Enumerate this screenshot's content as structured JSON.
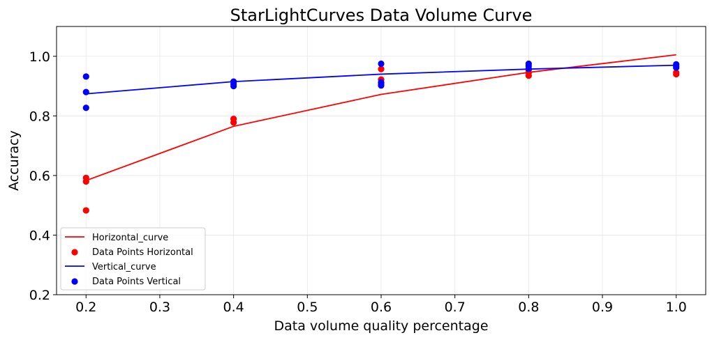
{
  "chart_data": {
    "type": "line",
    "title": "StarLightCurves Data Volume Curve",
    "xlabel": "Data volume quality percentage",
    "ylabel": "Accuracy",
    "xlim": [
      0.16,
      1.04
    ],
    "ylim": [
      0.2,
      1.1
    ],
    "xticks": [
      0.2,
      0.3,
      0.4,
      0.5,
      0.6,
      0.7,
      0.8,
      0.9,
      1.0
    ],
    "xtick_labels": [
      "0.2",
      "0.3",
      "0.4",
      "0.5",
      "0.6",
      "0.7",
      "0.8",
      "0.9",
      "1.0"
    ],
    "yticks": [
      0.2,
      0.4,
      0.6,
      0.8,
      1.0
    ],
    "ytick_labels": [
      "0.2",
      "0.4",
      "0.6",
      "0.8",
      "1.0"
    ],
    "grid": true,
    "legend_position": "lower-left",
    "series": [
      {
        "name": "Horizontal_curve",
        "kind": "line",
        "color": "#ff0000",
        "x": [
          0.2,
          0.4,
          0.6,
          0.8,
          1.0
        ],
        "y": [
          0.583,
          0.765,
          0.872,
          0.946,
          1.005
        ]
      },
      {
        "name": "Data Points Horizontal",
        "kind": "scatter",
        "color": "#ff0000",
        "x": [
          0.2,
          0.2,
          0.2,
          0.4,
          0.4,
          0.6,
          0.6,
          0.6,
          0.8,
          0.8,
          0.8,
          1.0,
          1.0
        ],
        "y": [
          0.592,
          0.58,
          0.483,
          0.79,
          0.778,
          0.957,
          0.922,
          0.91,
          0.945,
          0.935,
          0.955,
          0.945,
          0.94
        ]
      },
      {
        "name": "Vertical_curve",
        "kind": "line",
        "color": "#0000ff",
        "x": [
          0.2,
          0.4,
          0.6,
          0.8,
          1.0
        ],
        "y": [
          0.874,
          0.915,
          0.94,
          0.957,
          0.97
        ]
      },
      {
        "name": "Data Points Vertical",
        "kind": "scatter",
        "color": "#0000ff",
        "x": [
          0.2,
          0.2,
          0.2,
          0.4,
          0.4,
          0.4,
          0.6,
          0.6,
          0.6,
          0.6,
          0.8,
          0.8,
          0.8,
          1.0,
          1.0,
          1.0
        ],
        "y": [
          0.932,
          0.88,
          0.827,
          0.915,
          0.907,
          0.9,
          0.975,
          0.913,
          0.905,
          0.902,
          0.975,
          0.968,
          0.958,
          0.973,
          0.967,
          0.962
        ]
      }
    ]
  }
}
